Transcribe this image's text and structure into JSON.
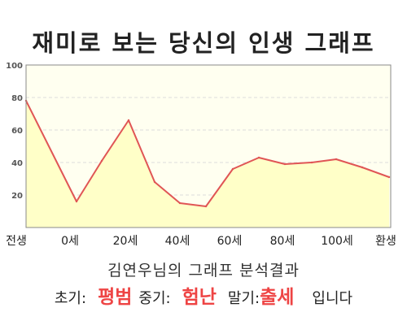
{
  "title": "재미로 보는 당신의 인생 그래프",
  "caption": "김연우님의 그래프 분석결과",
  "summary": {
    "early_label": "초기:",
    "early_value": "평범",
    "mid_label": "중기:",
    "mid_value": "험난",
    "late_label": "말기:",
    "late_value": "출세",
    "suffix": "입니다"
  },
  "colors": {
    "line": "#e05555",
    "fill": "#ffffc8",
    "plot_bg": "#fffff0",
    "highlight": "#ee4444"
  },
  "chart_data": {
    "type": "area",
    "title": "재미로 보는 당신의 인생 그래프",
    "xlabel": "",
    "ylabel": "",
    "ylim": [
      0,
      100
    ],
    "yticks": [
      20,
      40,
      60,
      80,
      100
    ],
    "x_tick_labels": [
      "전생",
      "0세",
      "20세",
      "40세",
      "60세",
      "80세",
      "100세",
      "환생"
    ],
    "grid": true,
    "series": [
      {
        "x": [
          "전생",
          "0세",
          "",
          "20세",
          "",
          "40세",
          "",
          "60세",
          "",
          "80세",
          "",
          "100세",
          "",
          "환생"
        ],
        "values": [
          78,
          16,
          41,
          66,
          28,
          15,
          13,
          36,
          43,
          39,
          40,
          42,
          37,
          31
        ]
      }
    ]
  }
}
